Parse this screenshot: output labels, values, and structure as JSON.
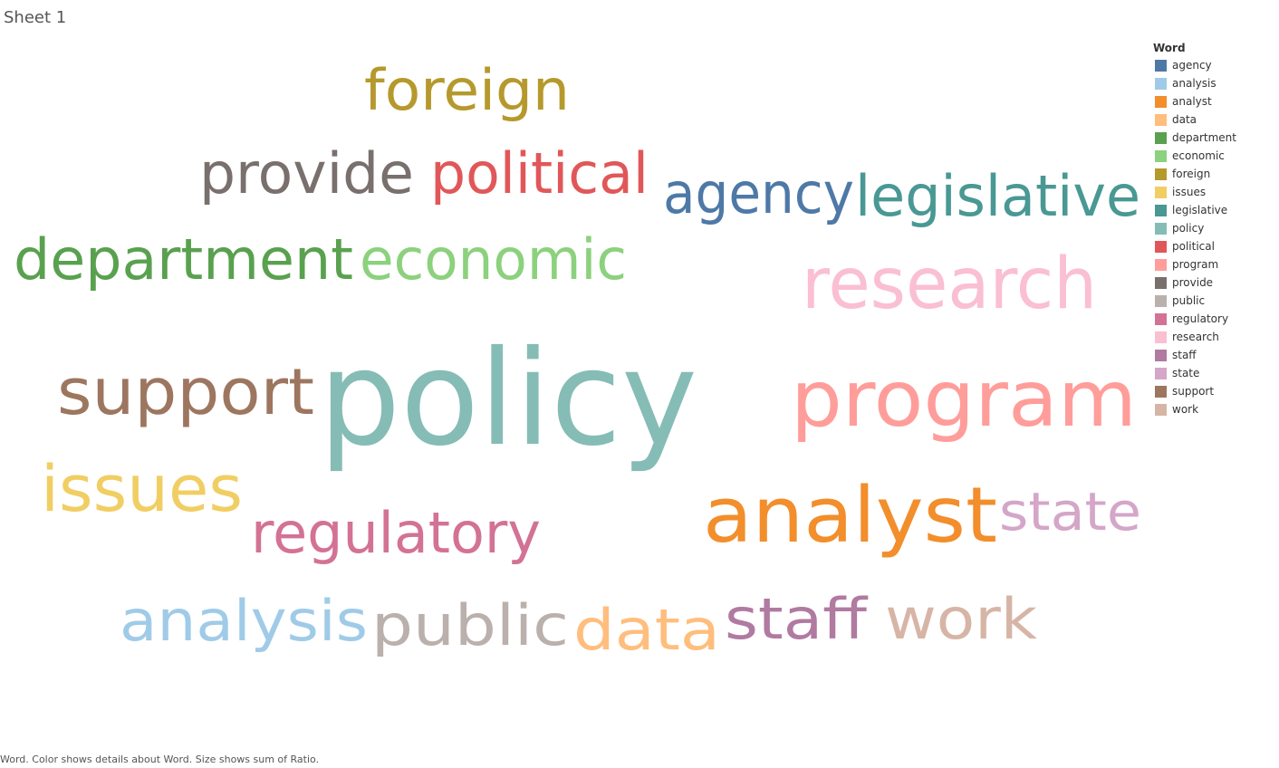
{
  "sheet_title": "Sheet 1",
  "footnote": "Word.  Color shows details about Word.  Size shows sum of Ratio.",
  "chart_data": {
    "type": "word cloud",
    "legend": {
      "title": "Word",
      "placement": "right"
    },
    "words": [
      {
        "word": "agency",
        "color": "#4E79A7"
      },
      {
        "word": "analysis",
        "color": "#A0CBE8"
      },
      {
        "word": "analyst",
        "color": "#F28E2B"
      },
      {
        "word": "data",
        "color": "#FFBE7D"
      },
      {
        "word": "department",
        "color": "#59A14F"
      },
      {
        "word": "economic",
        "color": "#8CD17D"
      },
      {
        "word": "foreign",
        "color": "#B6992D"
      },
      {
        "word": "issues",
        "color": "#F1CE63"
      },
      {
        "word": "legislative",
        "color": "#499894"
      },
      {
        "word": "policy",
        "color": "#86BCB6"
      },
      {
        "word": "political",
        "color": "#E15759"
      },
      {
        "word": "program",
        "color": "#FF9D9A"
      },
      {
        "word": "provide",
        "color": "#79706E"
      },
      {
        "word": "public",
        "color": "#BAB0AC"
      },
      {
        "word": "regulatory",
        "color": "#D37295"
      },
      {
        "word": "research",
        "color": "#FABFD2"
      },
      {
        "word": "staff",
        "color": "#B07AA1"
      },
      {
        "word": "state",
        "color": "#D4A6C8"
      },
      {
        "word": "support",
        "color": "#9D7660"
      },
      {
        "word": "work",
        "color": "#D7B5A6"
      }
    ]
  }
}
